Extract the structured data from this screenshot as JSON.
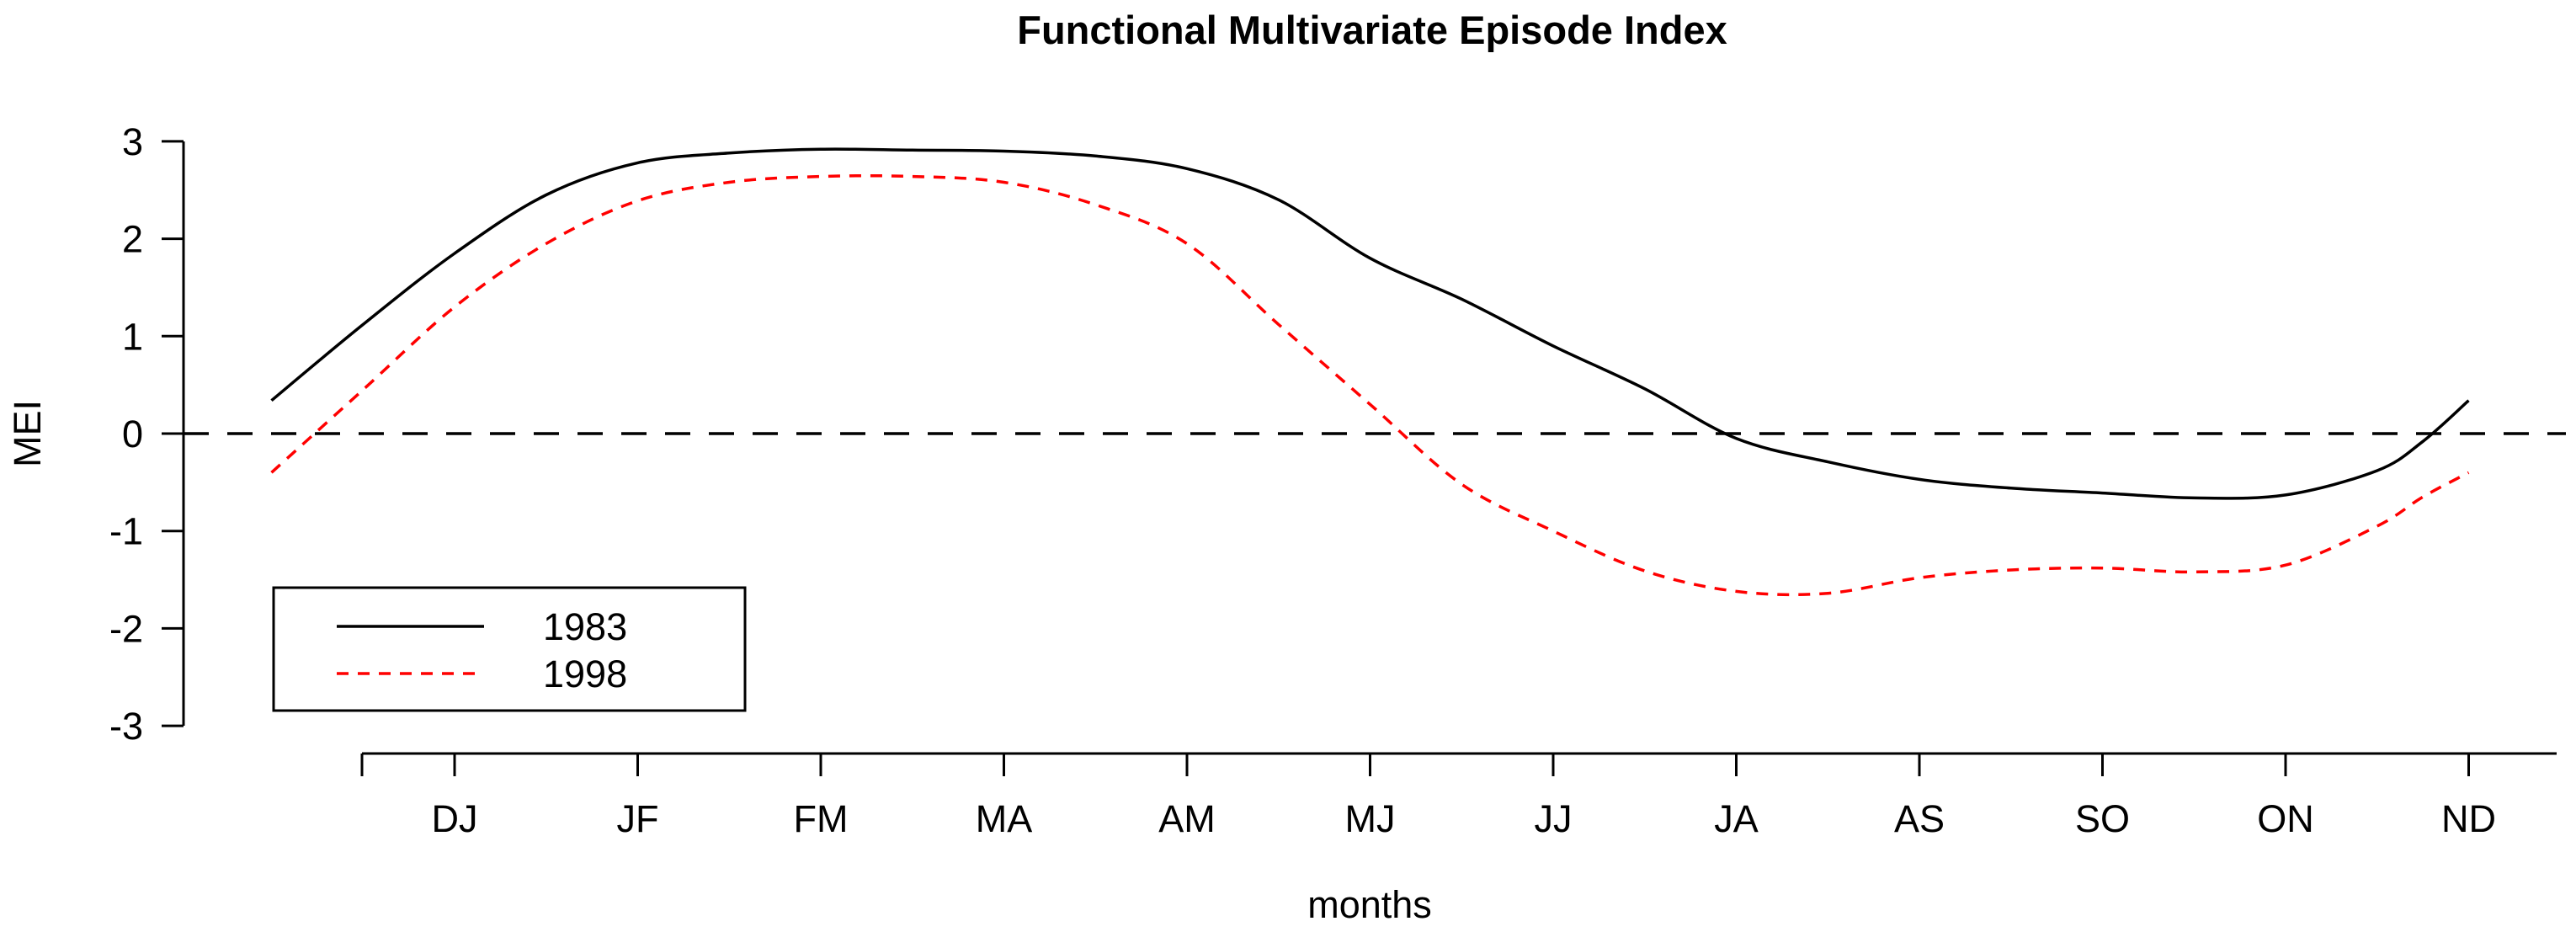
{
  "title": "Functional Multivariate Episode Index",
  "colors": {
    "background": "#ffffff",
    "axis": "#000000",
    "series_1983": "#000000",
    "series_1998": "#ff0000"
  },
  "axes": {
    "ylabel": "MEI",
    "xlabel": "months",
    "ytick_labels": [
      "3",
      "2",
      "1",
      "0",
      "-1",
      "-2",
      "-3"
    ],
    "ytick_values": [
      3,
      2,
      1,
      0,
      -1,
      -2,
      -3
    ],
    "xtick_labels": [
      "DJ",
      "JF",
      "FM",
      "MA",
      "AM",
      "MJ",
      "JJ",
      "JA",
      "AS",
      "SO",
      "ON",
      "ND"
    ],
    "has_unlabeled_left_edge_tick": true
  },
  "legend": {
    "entries": [
      {
        "label": "1983",
        "color": "#000000",
        "style": "solid"
      },
      {
        "label": "1998",
        "color": "#ff0000",
        "style": "dashed"
      }
    ]
  },
  "reference_line": {
    "value": 0,
    "style": "dashed",
    "color": "#000000"
  },
  "chart_data": {
    "type": "line",
    "title": "Functional Multivariate Episode Index",
    "xlabel": "months",
    "ylabel": "MEI",
    "ylim": [
      -3,
      3
    ],
    "grid": false,
    "legend_position": "lower-left",
    "categories": [
      "DJ",
      "JF",
      "FM",
      "MA",
      "AM",
      "MJ",
      "JJ",
      "JA",
      "AS",
      "SO",
      "ON",
      "ND"
    ],
    "series": [
      {
        "name": "1983",
        "color": "#000000",
        "line_style": "solid",
        "values_at_bimonths": [
          1.85,
          2.78,
          2.92,
          2.9,
          2.72,
          1.8,
          0.9,
          -0.05,
          -0.47,
          -0.61,
          -0.63,
          0.34
        ],
        "samples": [
          [
            0,
            0.34
          ],
          [
            0.5,
            1.12
          ],
          [
            1,
            1.85
          ],
          [
            1.5,
            2.45
          ],
          [
            2,
            2.78
          ],
          [
            2.5,
            2.88
          ],
          [
            3,
            2.92
          ],
          [
            3.5,
            2.91
          ],
          [
            4,
            2.9
          ],
          [
            4.5,
            2.85
          ],
          [
            5,
            2.72
          ],
          [
            5.5,
            2.4
          ],
          [
            6,
            1.8
          ],
          [
            6.5,
            1.38
          ],
          [
            7,
            0.9
          ],
          [
            7.5,
            0.46
          ],
          [
            8,
            -0.05
          ],
          [
            8.5,
            -0.29
          ],
          [
            9,
            -0.47
          ],
          [
            9.5,
            -0.56
          ],
          [
            10,
            -0.61
          ],
          [
            10.5,
            -0.66
          ],
          [
            11,
            -0.63
          ],
          [
            11.5,
            -0.38
          ],
          [
            11.75,
            -0.08
          ],
          [
            12,
            0.34
          ]
        ]
      },
      {
        "name": "1998",
        "color": "#ff0000",
        "line_style": "dashed",
        "values_at_bimonths": [
          1.3,
          2.39,
          2.64,
          2.58,
          1.95,
          0.3,
          -1.0,
          -1.62,
          -1.48,
          -1.38,
          -1.35,
          -0.4
        ],
        "samples": [
          [
            0,
            -0.4
          ],
          [
            0.5,
            0.45
          ],
          [
            1,
            1.3
          ],
          [
            1.5,
            1.95
          ],
          [
            2,
            2.39
          ],
          [
            2.5,
            2.58
          ],
          [
            3,
            2.64
          ],
          [
            3.5,
            2.64
          ],
          [
            4,
            2.58
          ],
          [
            4.5,
            2.35
          ],
          [
            5,
            1.95
          ],
          [
            5.5,
            1.12
          ],
          [
            6,
            0.3
          ],
          [
            6.5,
            -0.52
          ],
          [
            7,
            -1.0
          ],
          [
            7.5,
            -1.41
          ],
          [
            8,
            -1.62
          ],
          [
            8.5,
            -1.64
          ],
          [
            9,
            -1.48
          ],
          [
            9.5,
            -1.4
          ],
          [
            10,
            -1.38
          ],
          [
            10.5,
            -1.42
          ],
          [
            11,
            -1.35
          ],
          [
            11.5,
            -0.95
          ],
          [
            11.75,
            -0.65
          ],
          [
            12,
            -0.4
          ]
        ]
      }
    ]
  }
}
